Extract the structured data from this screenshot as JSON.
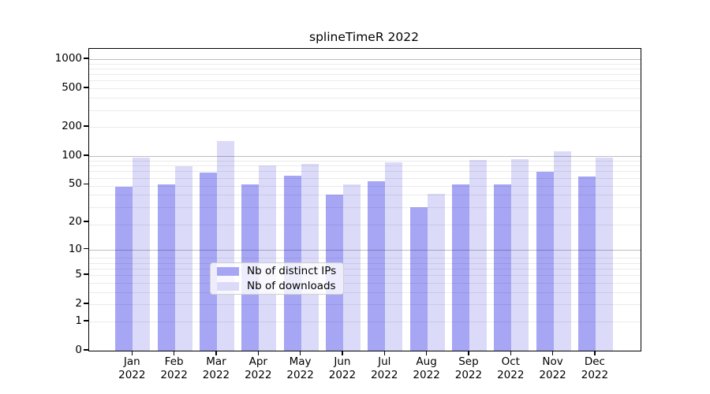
{
  "chart_data": {
    "type": "bar",
    "title": "splineTimeR 2022",
    "categories": [
      "Jan 2022",
      "Feb 2022",
      "Mar 2022",
      "Apr 2022",
      "May 2022",
      "Jun 2022",
      "Jul 2022",
      "Aug 2022",
      "Sep 2022",
      "Oct 2022",
      "Nov 2022",
      "Dec 2022"
    ],
    "series": [
      {
        "name": "Nb of distinct IPs",
        "color": "#a6a6f5",
        "values": [
          48,
          50,
          67,
          50,
          62,
          39,
          54,
          29,
          50,
          50,
          68,
          61
        ]
      },
      {
        "name": "Nb of downloads",
        "color": "#dbdbf9",
        "values": [
          96,
          78,
          142,
          79,
          82,
          50,
          85,
          40,
          91,
          93,
          112,
          96
        ]
      }
    ],
    "xlabel": "",
    "ylabel": "",
    "y_ticks": [
      0,
      1,
      2,
      5,
      10,
      20,
      50,
      100,
      200,
      500,
      1000
    ],
    "y_scale": "log10(value+1)",
    "ylim": [
      0,
      1275
    ],
    "grid": "horizontal log minor + decade major",
    "legend_position": "inside lower-center"
  },
  "legend": {
    "items": [
      {
        "label": "Nb of distinct IPs"
      },
      {
        "label": "Nb of downloads"
      }
    ]
  }
}
